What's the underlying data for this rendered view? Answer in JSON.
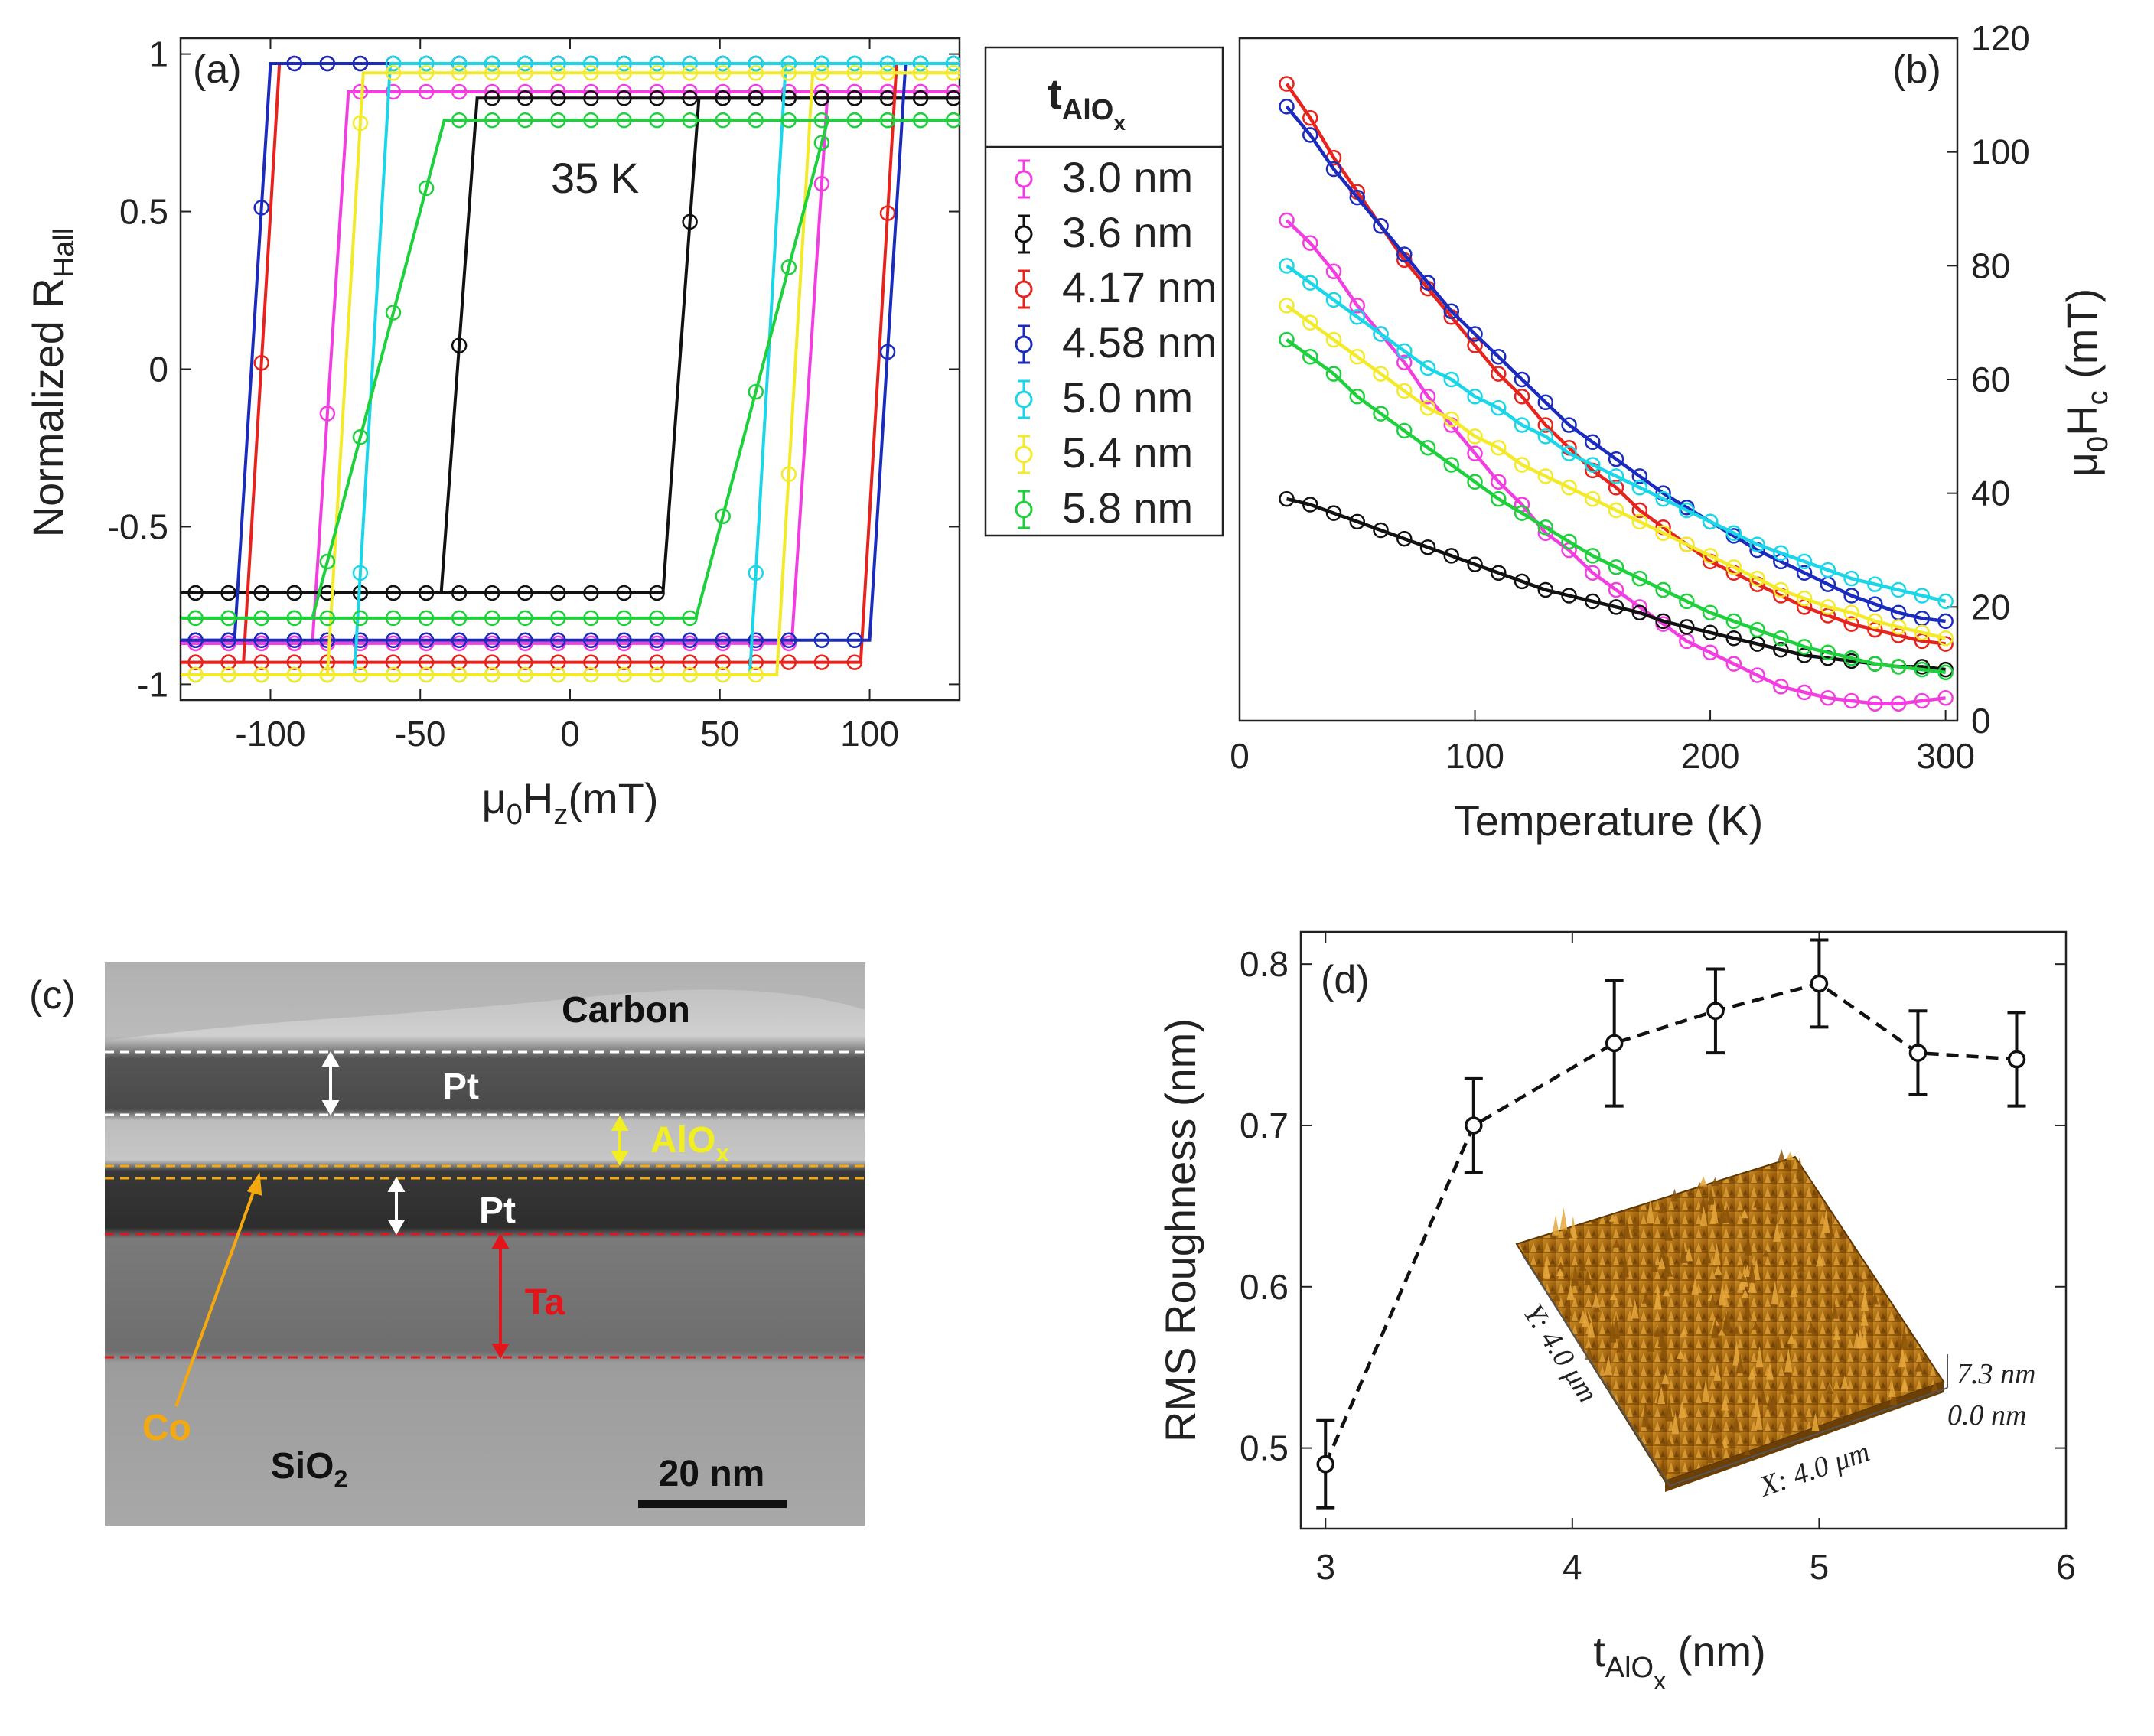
{
  "colors": {
    "3.0 nm": "#f23ee0",
    "3.6 nm": "#111111",
    "4.17 nm": "#e6231d",
    "4.58 nm": "#1a2bbd",
    "5.0 nm": "#1ad6e8",
    "5.4 nm": "#f3ea2a",
    "5.8 nm": "#1ed03c",
    "afm_brown": "#a66a12",
    "tem_red": "#e3141a",
    "tem_orange": "#f4a90f",
    "tem_yellow": "#f1ef22"
  },
  "legend": {
    "title_main": "t",
    "title_sub": "AlO",
    "title_subsub": "x",
    "items": [
      "3.0 nm",
      "3.6 nm",
      "4.17 nm",
      "4.58 nm",
      "5.0 nm",
      "5.4 nm",
      "5.8 nm"
    ]
  },
  "chart_data": [
    {
      "panel": "(a)",
      "type": "line",
      "annotation": "35 K",
      "ylabel_main": "Normalized R",
      "ylabel_sub": "Hall",
      "xlabel_main": "μ",
      "xlabel_sub1": "0",
      "xlabel_mid": "H",
      "xlabel_sub2": "z",
      "xlabel_tail": "(mT)",
      "xlim": [
        -130,
        130
      ],
      "ylim": [
        -1.05,
        1.05
      ],
      "xticks": [
        -100,
        -50,
        0,
        50,
        100
      ],
      "xtick_labels": [
        "-100",
        "-50",
        "0",
        "50",
        "100"
      ],
      "yticks": [
        -1,
        -0.5,
        0,
        0.5,
        1
      ],
      "ytick_labels": [
        "-1",
        "-0.5",
        "0",
        "0.5",
        "1"
      ],
      "series": [
        {
          "name": "3.0 nm",
          "coercive_mT": 80,
          "upper": 0.88,
          "lower": -0.87
        },
        {
          "name": "3.6 nm",
          "coercive_mT": 37,
          "upper": 0.86,
          "lower": -0.71
        },
        {
          "name": "4.17 nm",
          "coercive_mT": 103,
          "upper": 0.97,
          "lower": -0.93
        },
        {
          "name": "4.58 nm",
          "coercive_mT": 106,
          "upper": 0.97,
          "lower": -0.86
        },
        {
          "name": "5.0 nm",
          "coercive_mT": 66,
          "upper": 0.97,
          "lower": -0.97
        },
        {
          "name": "5.4 nm",
          "coercive_mT": 75,
          "upper": 0.94,
          "lower": -0.97
        },
        {
          "name": "5.8 nm",
          "coercive_mT": 64,
          "upper": 0.79,
          "lower": -0.79
        }
      ]
    },
    {
      "panel": "(b)",
      "type": "line",
      "xlabel": "Temperature (K)",
      "ylabel_main": "μ",
      "ylabel_sub1": "0",
      "ylabel_mid": "H",
      "ylabel_sub2": "c",
      "ylabel_tail": " (mT)",
      "xlim": [
        0,
        305
      ],
      "ylim": [
        0,
        120
      ],
      "xticks": [
        0,
        100,
        200,
        300
      ],
      "xtick_labels": [
        "0",
        "100",
        "200",
        "300"
      ],
      "yticks": [
        0,
        20,
        40,
        60,
        80,
        100,
        120
      ],
      "ytick_labels": [
        "0",
        "20",
        "40",
        "60",
        "80",
        "100",
        "120"
      ],
      "x": [
        20,
        30,
        40,
        50,
        60,
        70,
        80,
        90,
        100,
        110,
        120,
        130,
        140,
        150,
        160,
        170,
        180,
        190,
        200,
        210,
        220,
        230,
        240,
        250,
        260,
        270,
        280,
        290,
        300
      ],
      "series": [
        {
          "name": "3.0 nm",
          "values": [
            88,
            84,
            79,
            73,
            68,
            63,
            57,
            52,
            47,
            42,
            38,
            33,
            30,
            26,
            23,
            20,
            17,
            14,
            12,
            10,
            8,
            6,
            5,
            4,
            3.5,
            3,
            3,
            3.5,
            4
          ]
        },
        {
          "name": "3.6 nm",
          "values": [
            39,
            38,
            36.5,
            35,
            33.5,
            32,
            30.5,
            29,
            27.5,
            26,
            24.5,
            23,
            22,
            21,
            20,
            19,
            17.5,
            16.5,
            15.5,
            14.5,
            13.5,
            12.5,
            11.5,
            11,
            10.5,
            10,
            9.5,
            9.5,
            9
          ]
        },
        {
          "name": "4.17 nm",
          "values": [
            112,
            106,
            99,
            93,
            87,
            81,
            76,
            71,
            66,
            61,
            57,
            52,
            48,
            44,
            41,
            37,
            34,
            31,
            28,
            26,
            24,
            22,
            20,
            18.5,
            17,
            16,
            15,
            14,
            13.5
          ]
        },
        {
          "name": "4.58 nm",
          "values": [
            108,
            103,
            97,
            92,
            87,
            82,
            77,
            72,
            68,
            64,
            60,
            56,
            52,
            49,
            46,
            43,
            40,
            37.5,
            35,
            32.5,
            30,
            28,
            26,
            24,
            22,
            20.5,
            19,
            18,
            17.5
          ]
        },
        {
          "name": "5.0 nm",
          "values": [
            80,
            77,
            74,
            71,
            68,
            65,
            62,
            60,
            57,
            55,
            52,
            50,
            47,
            45,
            43,
            41,
            39,
            37,
            35,
            33,
            31,
            29.5,
            28,
            26.5,
            25,
            24,
            23,
            22,
            21
          ]
        },
        {
          "name": "5.4 nm",
          "values": [
            73,
            70,
            67,
            64,
            61,
            58,
            55,
            53,
            50,
            48,
            45,
            43,
            41,
            39,
            37,
            35,
            33,
            31,
            29,
            27,
            25,
            23,
            21.5,
            20,
            19,
            17.5,
            16.5,
            15.5,
            14.5
          ]
        },
        {
          "name": "5.8 nm",
          "values": [
            67,
            64,
            61,
            57,
            54,
            51,
            48,
            45,
            42,
            39,
            36.5,
            34,
            31.5,
            29,
            27,
            25,
            23,
            21,
            19,
            17.5,
            16,
            14.5,
            13,
            12,
            11,
            10,
            9.5,
            9,
            8.5
          ]
        }
      ]
    },
    {
      "panel": "(d)",
      "type": "line",
      "ylabel": "RMS Roughness (nm)",
      "xlabel_main": "t",
      "xlabel_sub": "AlO",
      "xlabel_subsub": "x",
      "xlabel_tail": " (nm)",
      "xlim": [
        2.9,
        6.0
      ],
      "ylim": [
        0.45,
        0.82
      ],
      "xticks": [
        3,
        4,
        5,
        6
      ],
      "xtick_labels": [
        "3",
        "4",
        "5",
        "6"
      ],
      "yticks": [
        0.5,
        0.6,
        0.7,
        0.8
      ],
      "ytick_labels": [
        "0.5",
        "0.6",
        "0.7",
        "0.8"
      ],
      "x": [
        3.0,
        3.6,
        4.17,
        4.58,
        5.0,
        5.4,
        5.8
      ],
      "values": [
        0.49,
        0.7,
        0.751,
        0.771,
        0.788,
        0.745,
        0.741
      ],
      "errors": [
        0.027,
        0.029,
        0.039,
        0.026,
        0.027,
        0.026,
        0.029
      ],
      "inset": {
        "y_label": "Y: 4.0 μm",
        "x_label": "X: 4.0 μm",
        "z_max": "7.3 nm",
        "z_min": "0.0 nm"
      }
    }
  ],
  "panel_c": {
    "label": "(c)",
    "carbon": "Carbon",
    "pt_top": "Pt",
    "alox_main": "AlO",
    "alox_sub": "x",
    "pt_bottom": "Pt",
    "ta": "Ta",
    "co": "Co",
    "sio2_main": "SiO",
    "sio2_sub": "2",
    "scale": "20 nm"
  }
}
